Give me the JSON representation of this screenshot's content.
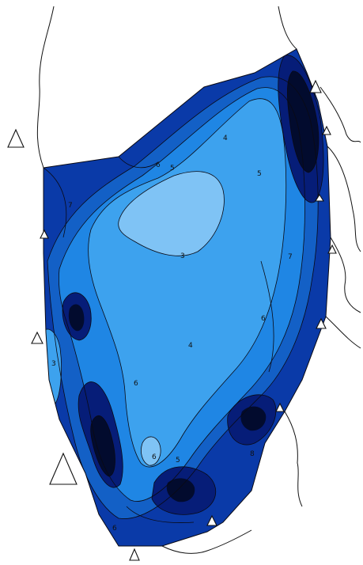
{
  "map": {
    "colors": {
      "level3": "#7fc3f5",
      "level4": "#3da2ee",
      "level5": "#1f86e4",
      "level6": "#1360c6",
      "level7": "#0a3aa8",
      "level8": "#061d78",
      "level9": "#020b2e"
    },
    "contour_labels": [
      {
        "id": "c-3-top",
        "text": "3"
      },
      {
        "id": "c-4-upper",
        "text": "4"
      },
      {
        "id": "c-4-center",
        "text": "4"
      },
      {
        "id": "c-5-upper",
        "text": "5"
      },
      {
        "id": "c-5-right",
        "text": "5"
      },
      {
        "id": "c-5-bottom",
        "text": "5"
      },
      {
        "id": "c-6-upper",
        "text": "6"
      },
      {
        "id": "c-6-right",
        "text": "6"
      },
      {
        "id": "c-6-mid",
        "text": "6"
      },
      {
        "id": "c-6-low",
        "text": "6"
      },
      {
        "id": "c-7-left",
        "text": "7"
      },
      {
        "id": "c-7-right",
        "text": "7"
      },
      {
        "id": "c-3-left",
        "text": "3"
      },
      {
        "id": "c-8-low",
        "text": "8"
      },
      {
        "id": "c-6-bottom",
        "text": "6"
      }
    ],
    "stations": [
      {
        "id": "station-1",
        "symbol": "triangle",
        "size": "medium"
      },
      {
        "id": "station-2",
        "symbol": "triangle",
        "size": "small"
      },
      {
        "id": "station-3",
        "symbol": "triangle",
        "size": "small"
      },
      {
        "id": "station-4",
        "symbol": "triangle",
        "size": "small"
      },
      {
        "id": "station-5",
        "symbol": "triangle",
        "size": "large"
      },
      {
        "id": "station-6",
        "symbol": "triangle",
        "size": "small"
      },
      {
        "id": "station-7",
        "symbol": "triangle",
        "size": "small"
      },
      {
        "id": "station-8",
        "symbol": "triangle",
        "size": "small"
      },
      {
        "id": "station-9",
        "symbol": "triangle",
        "size": "small"
      },
      {
        "id": "station-10",
        "symbol": "triangle",
        "size": "small"
      },
      {
        "id": "station-11",
        "symbol": "triangle",
        "size": "small"
      },
      {
        "id": "station-12",
        "symbol": "triangle",
        "size": "small"
      }
    ]
  }
}
